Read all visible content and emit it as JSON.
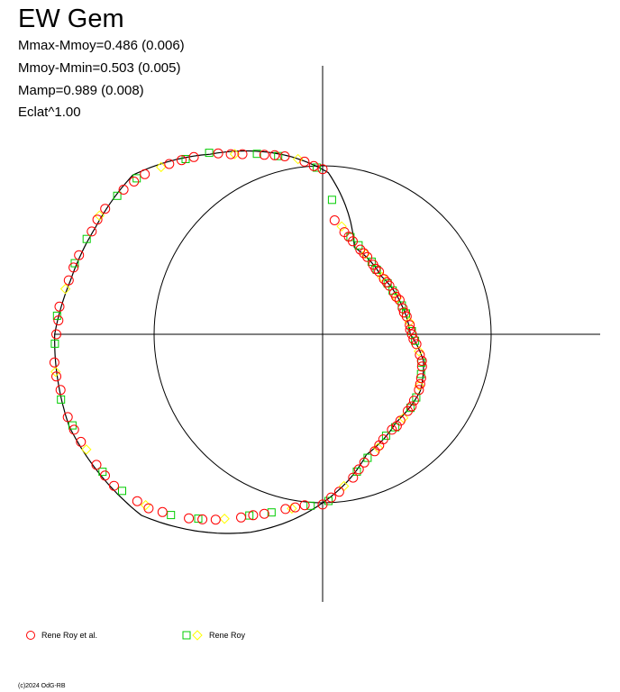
{
  "header": {
    "title": "EW Gem",
    "stats": [
      "Mmax-Mmoy=0.486 (0.006)",
      "Mmoy-Mmin=0.503 (0.005)",
      "Mamp=0.989 (0.008)",
      "Eclat^1.00"
    ]
  },
  "chart_data": {
    "type": "scatter",
    "title": "EW Gem",
    "xlabel": "",
    "ylabel": "",
    "grid": false,
    "legend_position": "bottom-left",
    "reference_circle_radius": 1.0,
    "axes": "crosshair at origin",
    "xlim": [
      -1.6,
      1.75
    ],
    "ylim": [
      -1.6,
      1.6
    ],
    "model_curve": {
      "description": "polar light-curve model",
      "points": [
        [
          0,
          0.52
        ],
        [
          20,
          0.5
        ],
        [
          45,
          0.49
        ],
        [
          70,
          0.55
        ],
        [
          88,
          0.96
        ],
        [
          100,
          1.07
        ],
        [
          122,
          1.26
        ],
        [
          140,
          1.47
        ],
        [
          155,
          1.49
        ],
        [
          168,
          1.53
        ],
        [
          180,
          1.59
        ],
        [
          200,
          1.6
        ],
        [
          225,
          1.52
        ],
        [
          250,
          1.25
        ],
        [
          270,
          1.0
        ],
        [
          290,
          0.76
        ],
        [
          310,
          0.68
        ],
        [
          330,
          0.67
        ],
        [
          345,
          0.62
        ]
      ]
    },
    "series": [
      {
        "name": "Rene Roy et al.",
        "marker": "circle",
        "color": "#ff0000",
        "points": [
          [
            0,
            0.53
          ],
          [
            6,
            0.52
          ],
          [
            12,
            0.51
          ],
          [
            18,
            0.5
          ],
          [
            24,
            0.5
          ],
          [
            30,
            0.49
          ],
          [
            36,
            0.49
          ],
          [
            42,
            0.49
          ],
          [
            48,
            0.5
          ],
          [
            54,
            0.51
          ],
          [
            60,
            0.53
          ],
          [
            66,
            0.55
          ],
          [
            72,
            0.58
          ],
          [
            78,
            0.62
          ],
          [
            84,
            0.68
          ],
          [
            90,
            0.98
          ],
          [
            96,
            1.03
          ],
          [
            102,
            1.08
          ],
          [
            108,
            1.12
          ],
          [
            114,
            1.17
          ],
          [
            120,
            1.24
          ],
          [
            126,
            1.3
          ],
          [
            132,
            1.36
          ],
          [
            138,
            1.42
          ],
          [
            144,
            1.46
          ],
          [
            150,
            1.49
          ],
          [
            156,
            1.5
          ],
          [
            162,
            1.52
          ],
          [
            168,
            1.54
          ],
          [
            174,
            1.57
          ],
          [
            180,
            1.58
          ],
          [
            186,
            1.6
          ],
          [
            192,
            1.59
          ],
          [
            198,
            1.59
          ],
          [
            204,
            1.57
          ],
          [
            210,
            1.55
          ],
          [
            216,
            1.53
          ],
          [
            222,
            1.48
          ],
          [
            228,
            1.42
          ],
          [
            234,
            1.35
          ],
          [
            240,
            1.27
          ],
          [
            246,
            1.19
          ],
          [
            252,
            1.12
          ],
          [
            258,
            1.06
          ],
          [
            264,
            1.02
          ],
          [
            270,
            1.01
          ],
          [
            276,
            0.94
          ],
          [
            282,
            0.87
          ],
          [
            288,
            0.8
          ],
          [
            294,
            0.76
          ],
          [
            300,
            0.72
          ],
          [
            306,
            0.7
          ],
          [
            312,
            0.69
          ],
          [
            318,
            0.68
          ],
          [
            324,
            0.67
          ],
          [
            330,
            0.66
          ],
          [
            336,
            0.64
          ],
          [
            342,
            0.62
          ],
          [
            348,
            0.59
          ],
          [
            354,
            0.56
          ],
          [
            3,
            0.52
          ],
          [
            15,
            0.5
          ],
          [
            27,
            0.49
          ],
          [
            39,
            0.49
          ],
          [
            51,
            0.5
          ],
          [
            63,
            0.54
          ],
          [
            75,
            0.6
          ],
          [
            93,
            1.0
          ],
          [
            105,
            1.1
          ],
          [
            117,
            1.2
          ],
          [
            129,
            1.33
          ],
          [
            141,
            1.44
          ],
          [
            153,
            1.5
          ],
          [
            165,
            1.53
          ],
          [
            177,
            1.57
          ],
          [
            189,
            1.6
          ],
          [
            201,
            1.58
          ],
          [
            213,
            1.54
          ],
          [
            225,
            1.46
          ],
          [
            237,
            1.31
          ],
          [
            249,
            1.15
          ],
          [
            261,
            1.04
          ],
          [
            273,
            0.97
          ],
          [
            285,
            0.83
          ],
          [
            297,
            0.74
          ],
          [
            309,
            0.7
          ],
          [
            321,
            0.68
          ],
          [
            333,
            0.65
          ],
          [
            345,
            0.61
          ],
          [
            357,
            0.54
          ]
        ]
      },
      {
        "name": "Rene Roy",
        "marker": "square+diamond",
        "color": "#00cc00",
        "color_alt": "#ffff00",
        "points": [
          [
            2,
            0.53
          ],
          [
            8,
            0.52
          ],
          [
            14,
            0.51
          ],
          [
            20,
            0.5
          ],
          [
            26,
            0.49
          ],
          [
            32,
            0.49
          ],
          [
            38,
            0.49
          ],
          [
            44,
            0.49
          ],
          [
            50,
            0.5
          ],
          [
            56,
            0.52
          ],
          [
            62,
            0.54
          ],
          [
            68,
            0.57
          ],
          [
            74,
            0.6
          ],
          [
            80,
            0.65
          ],
          [
            86,
            0.8
          ],
          [
            92,
            0.99
          ],
          [
            98,
            1.05
          ],
          [
            104,
            1.09
          ],
          [
            110,
            1.14
          ],
          [
            116,
            1.19
          ],
          [
            122,
            1.27
          ],
          [
            128,
            1.32
          ],
          [
            134,
            1.38
          ],
          [
            140,
            1.44
          ],
          [
            146,
            1.47
          ],
          [
            152,
            1.5
          ],
          [
            158,
            1.51
          ],
          [
            164,
            1.53
          ],
          [
            170,
            1.55
          ],
          [
            176,
            1.58
          ],
          [
            182,
            1.59
          ],
          [
            188,
            1.6
          ],
          [
            194,
            1.6
          ],
          [
            200,
            1.58
          ],
          [
            206,
            1.56
          ],
          [
            212,
            1.54
          ],
          [
            218,
            1.51
          ],
          [
            224,
            1.46
          ],
          [
            230,
            1.4
          ],
          [
            236,
            1.32
          ],
          [
            242,
            1.24
          ],
          [
            248,
            1.16
          ],
          [
            254,
            1.1
          ],
          [
            260,
            1.05
          ],
          [
            266,
            1.02
          ],
          [
            272,
            0.99
          ],
          [
            278,
            0.91
          ],
          [
            284,
            0.84
          ],
          [
            290,
            0.78
          ],
          [
            296,
            0.75
          ],
          [
            302,
            0.71
          ],
          [
            308,
            0.7
          ],
          [
            314,
            0.69
          ],
          [
            320,
            0.68
          ],
          [
            326,
            0.67
          ],
          [
            332,
            0.65
          ],
          [
            338,
            0.63
          ],
          [
            344,
            0.61
          ],
          [
            350,
            0.58
          ],
          [
            356,
            0.55
          ]
        ]
      }
    ]
  },
  "legend": {
    "entries": [
      "Rene Roy et al.",
      "Rene Roy"
    ]
  },
  "footer": {
    "copyright": "(c)2024 OdG-RB"
  }
}
